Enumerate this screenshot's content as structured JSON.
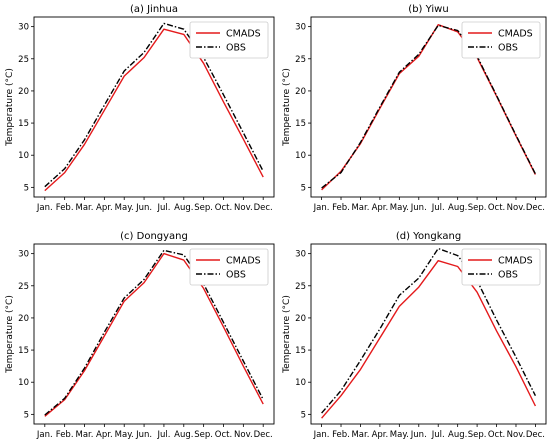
{
  "chart_data": [
    {
      "type": "line",
      "title": "(a) Jinhua",
      "ylabel": "Temperature (°C)",
      "categories": [
        "Jan.",
        "Feb.",
        "Mar.",
        "Apr.",
        "May.",
        "Jun.",
        "Jul.",
        "Aug.",
        "Sep.",
        "Oct.",
        "Nov.",
        "Dec."
      ],
      "ylim": [
        3.5,
        31.5
      ],
      "yticks": [
        5,
        10,
        15,
        20,
        25,
        30
      ],
      "legend_position": "top-right",
      "series": [
        {
          "name": "CMADS",
          "color": "#e41a1c",
          "style": "solid",
          "values": [
            4.5,
            7.3,
            11.7,
            17.0,
            22.3,
            25.2,
            29.6,
            28.8,
            24.3,
            18.3,
            12.5,
            6.6
          ]
        },
        {
          "name": "OBS",
          "color": "#000000",
          "style": "dashdot",
          "values": [
            5.1,
            7.9,
            12.4,
            17.8,
            23.1,
            26.0,
            30.5,
            29.6,
            25.2,
            19.4,
            13.5,
            7.5
          ]
        }
      ]
    },
    {
      "type": "line",
      "title": "(b) Yiwu",
      "ylabel": "Temperature (°C)",
      "categories": [
        "Jan.",
        "Feb.",
        "Mar.",
        "Apr.",
        "May.",
        "Jun.",
        "Jul.",
        "Aug.",
        "Sep.",
        "Oct.",
        "Nov.",
        "Dec."
      ],
      "ylim": [
        3.5,
        31.5
      ],
      "yticks": [
        5,
        10,
        15,
        20,
        25,
        30
      ],
      "legend_position": "top-right",
      "series": [
        {
          "name": "CMADS",
          "color": "#e41a1c",
          "style": "solid",
          "values": [
            4.6,
            7.5,
            11.8,
            17.3,
            22.7,
            25.4,
            30.3,
            29.2,
            25.2,
            19.2,
            13.0,
            7.0
          ]
        },
        {
          "name": "OBS",
          "color": "#000000",
          "style": "dashdot",
          "values": [
            4.9,
            7.3,
            12.0,
            17.5,
            22.9,
            25.7,
            30.2,
            29.4,
            25.4,
            19.3,
            13.1,
            7.1
          ]
        }
      ]
    },
    {
      "type": "line",
      "title": "(c) Dongyang",
      "ylabel": "Temperature (°C)",
      "categories": [
        "Jan.",
        "Feb.",
        "Mar.",
        "Apr.",
        "May.",
        "Jun.",
        "Jul.",
        "Aug.",
        "Sep.",
        "Oct.",
        "Nov.",
        "Dec."
      ],
      "ylim": [
        3.5,
        31.5
      ],
      "yticks": [
        5,
        10,
        15,
        20,
        25,
        30
      ],
      "legend_position": "top-right",
      "series": [
        {
          "name": "CMADS",
          "color": "#e41a1c",
          "style": "solid",
          "values": [
            4.7,
            7.3,
            11.8,
            17.2,
            22.6,
            25.5,
            30.0,
            29.0,
            24.6,
            18.6,
            12.5,
            6.6
          ]
        },
        {
          "name": "OBS",
          "color": "#000000",
          "style": "dashdot",
          "values": [
            4.9,
            7.5,
            12.2,
            17.8,
            23.1,
            26.0,
            30.5,
            29.8,
            25.3,
            19.3,
            13.3,
            7.3
          ]
        }
      ]
    },
    {
      "type": "line",
      "title": "(d) Yongkang",
      "ylabel": "Temperature (°C)",
      "categories": [
        "Jan.",
        "Feb.",
        "Mar.",
        "Apr.",
        "May.",
        "Jun.",
        "Jul.",
        "Aug.",
        "Sep.",
        "Oct.",
        "Nov.",
        "Dec."
      ],
      "ylim": [
        3.5,
        31.5
      ],
      "yticks": [
        5,
        10,
        15,
        20,
        25,
        30
      ],
      "legend_position": "top-right",
      "series": [
        {
          "name": "CMADS",
          "color": "#e41a1c",
          "style": "solid",
          "values": [
            4.4,
            7.9,
            12.0,
            16.9,
            21.8,
            24.8,
            28.9,
            28.0,
            24.0,
            18.0,
            12.4,
            6.3
          ]
        },
        {
          "name": "OBS",
          "color": "#000000",
          "style": "dashdot",
          "values": [
            5.2,
            8.7,
            13.4,
            18.3,
            23.5,
            26.2,
            30.8,
            29.7,
            25.8,
            19.7,
            13.9,
            7.9
          ]
        }
      ]
    }
  ]
}
